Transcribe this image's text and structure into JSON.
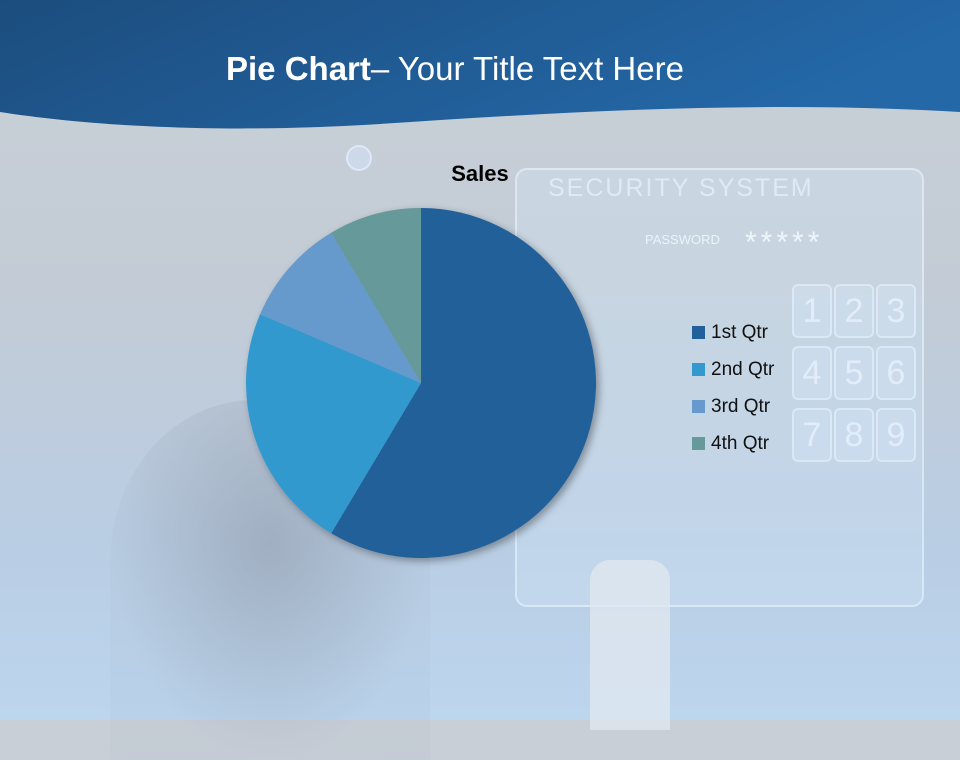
{
  "slide": {
    "title_bold": "Pie Chart",
    "title_rest": "– Your Title Text Here"
  },
  "background": {
    "panel_title": "SECURITY SYSTEM",
    "password_label": "PASSWORD",
    "password_mask": "*****",
    "keys": [
      "1",
      "2",
      "3",
      "4",
      "5",
      "6",
      "7",
      "8",
      "9"
    ]
  },
  "chart_data": {
    "type": "pie",
    "title": "Sales",
    "categories": [
      "1st Qtr",
      "2nd Qtr",
      "3rd Qtr",
      "4th Qtr"
    ],
    "values": [
      8.2,
      3.2,
      1.4,
      1.2
    ],
    "colors": [
      "#21609a",
      "#3399cf",
      "#6699cc",
      "#669999"
    ],
    "legend_position": "right",
    "start_angle_deg": 0,
    "direction": "clockwise"
  }
}
